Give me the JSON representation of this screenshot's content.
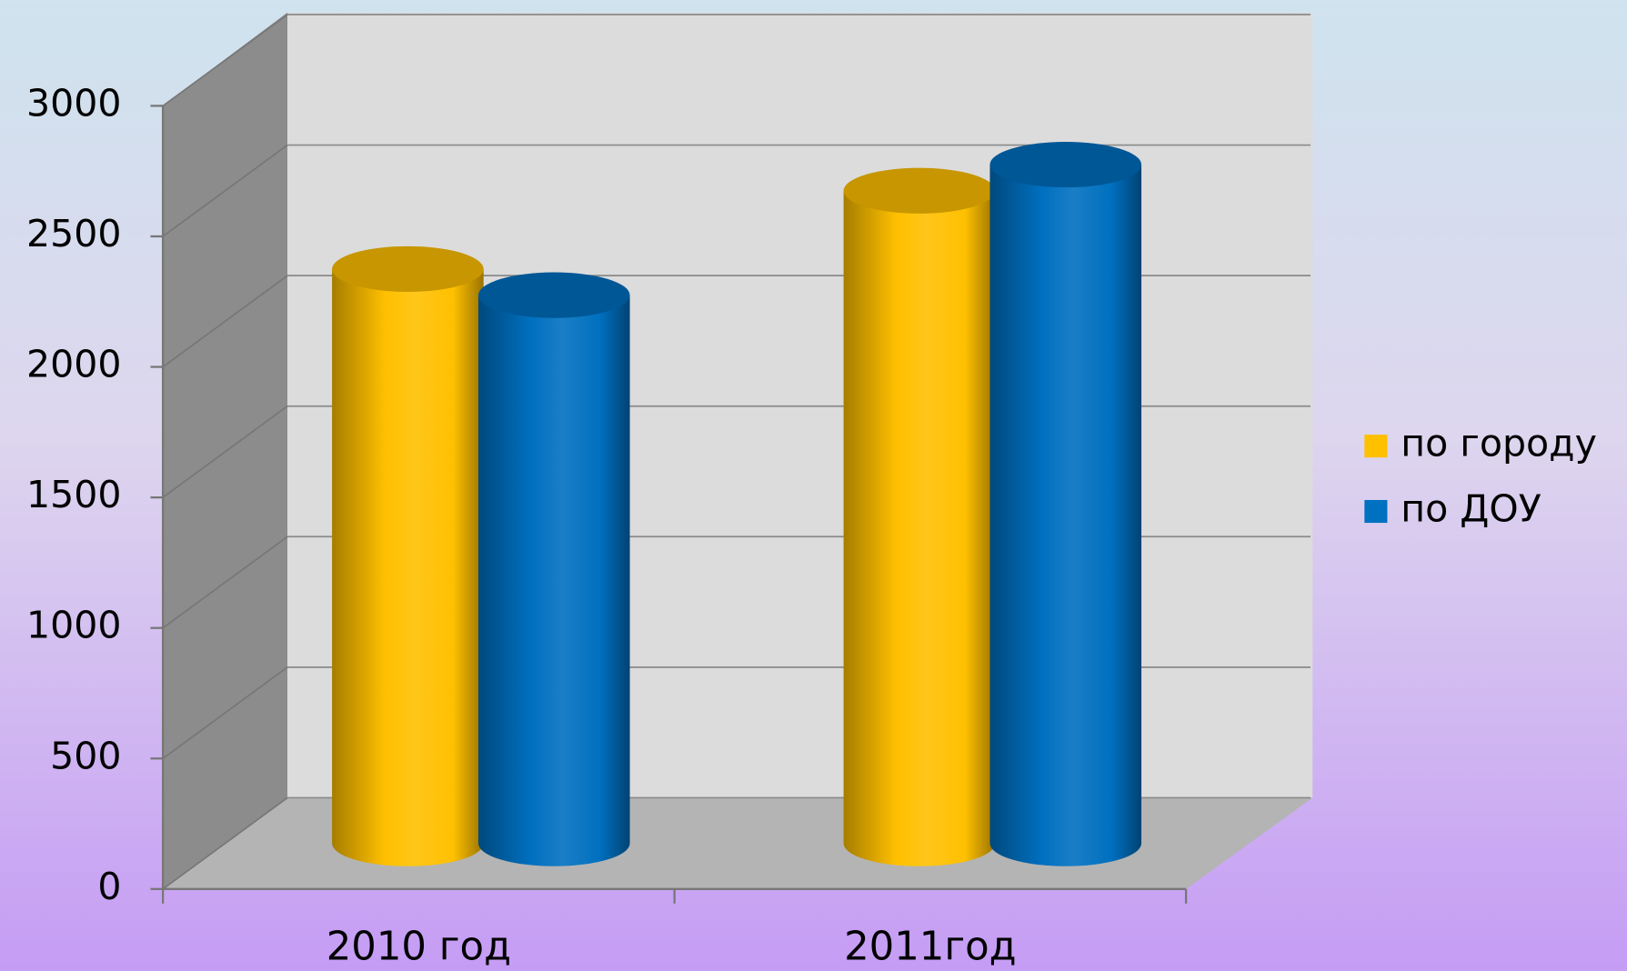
{
  "chart_data": {
    "type": "bar3d",
    "categories": [
      "2010 год",
      "2011год"
    ],
    "series": [
      {
        "name": "по городу",
        "color": "#ffc000",
        "values": [
          2200,
          2500
        ]
      },
      {
        "name": "по ДОУ",
        "color": "#0070c0",
        "values": [
          2100,
          2600
        ]
      }
    ],
    "ylim": [
      0,
      3000
    ],
    "yticks": [
      0,
      500,
      1000,
      1500,
      2000,
      2500,
      3000
    ],
    "grid": true,
    "legend": "right"
  }
}
